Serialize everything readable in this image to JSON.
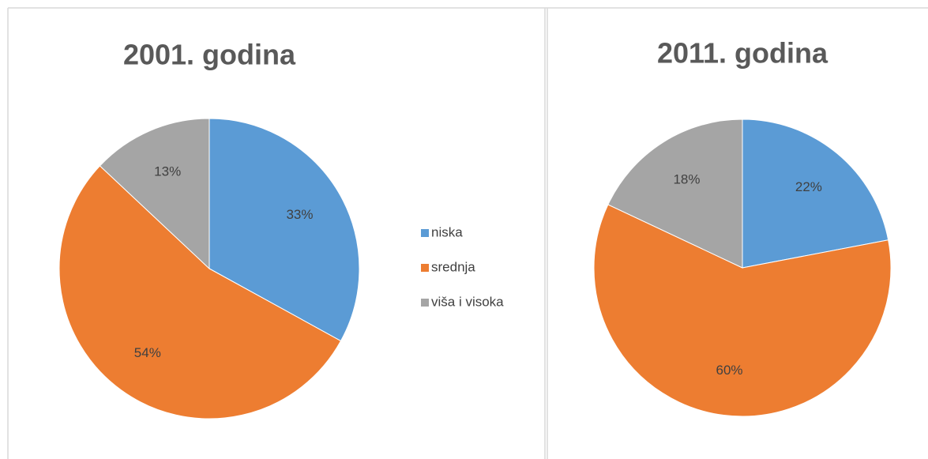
{
  "chart_data": [
    {
      "type": "pie",
      "title": "2001. godina",
      "categories": [
        "niska",
        "srednja",
        "viša i visoka"
      ],
      "values": [
        33,
        54,
        13
      ],
      "value_labels": [
        "33%",
        "54%",
        "13%"
      ],
      "colors": [
        "#5b9bd5",
        "#ed7d31",
        "#a5a5a5"
      ],
      "legend": "right"
    },
    {
      "type": "pie",
      "title": "2011. godina",
      "categories": [
        "niska",
        "srednja",
        "viša i visoka"
      ],
      "values": [
        22,
        60,
        18
      ],
      "value_labels": [
        "22%",
        "60%",
        "18%"
      ],
      "colors": [
        "#5b9bd5",
        "#ed7d31",
        "#a5a5a5"
      ]
    }
  ]
}
